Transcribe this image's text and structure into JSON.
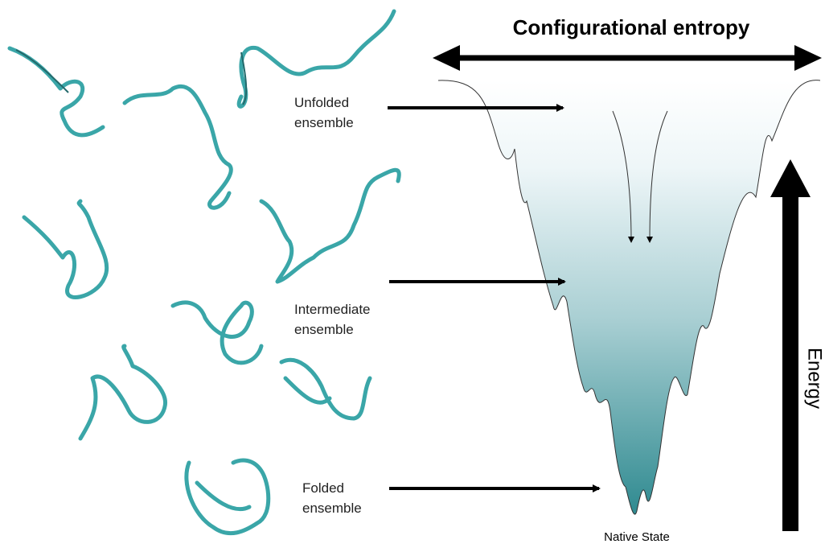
{
  "title": "Configurational entropy",
  "axis_label": "Energy",
  "ensembles": [
    {
      "lines": [
        "Unfolded",
        "ensemble"
      ]
    },
    {
      "lines": [
        "Intermediate",
        "ensemble"
      ]
    },
    {
      "lines": [
        "Folded",
        "ensemble"
      ]
    }
  ],
  "bottom_label": "Native State"
}
